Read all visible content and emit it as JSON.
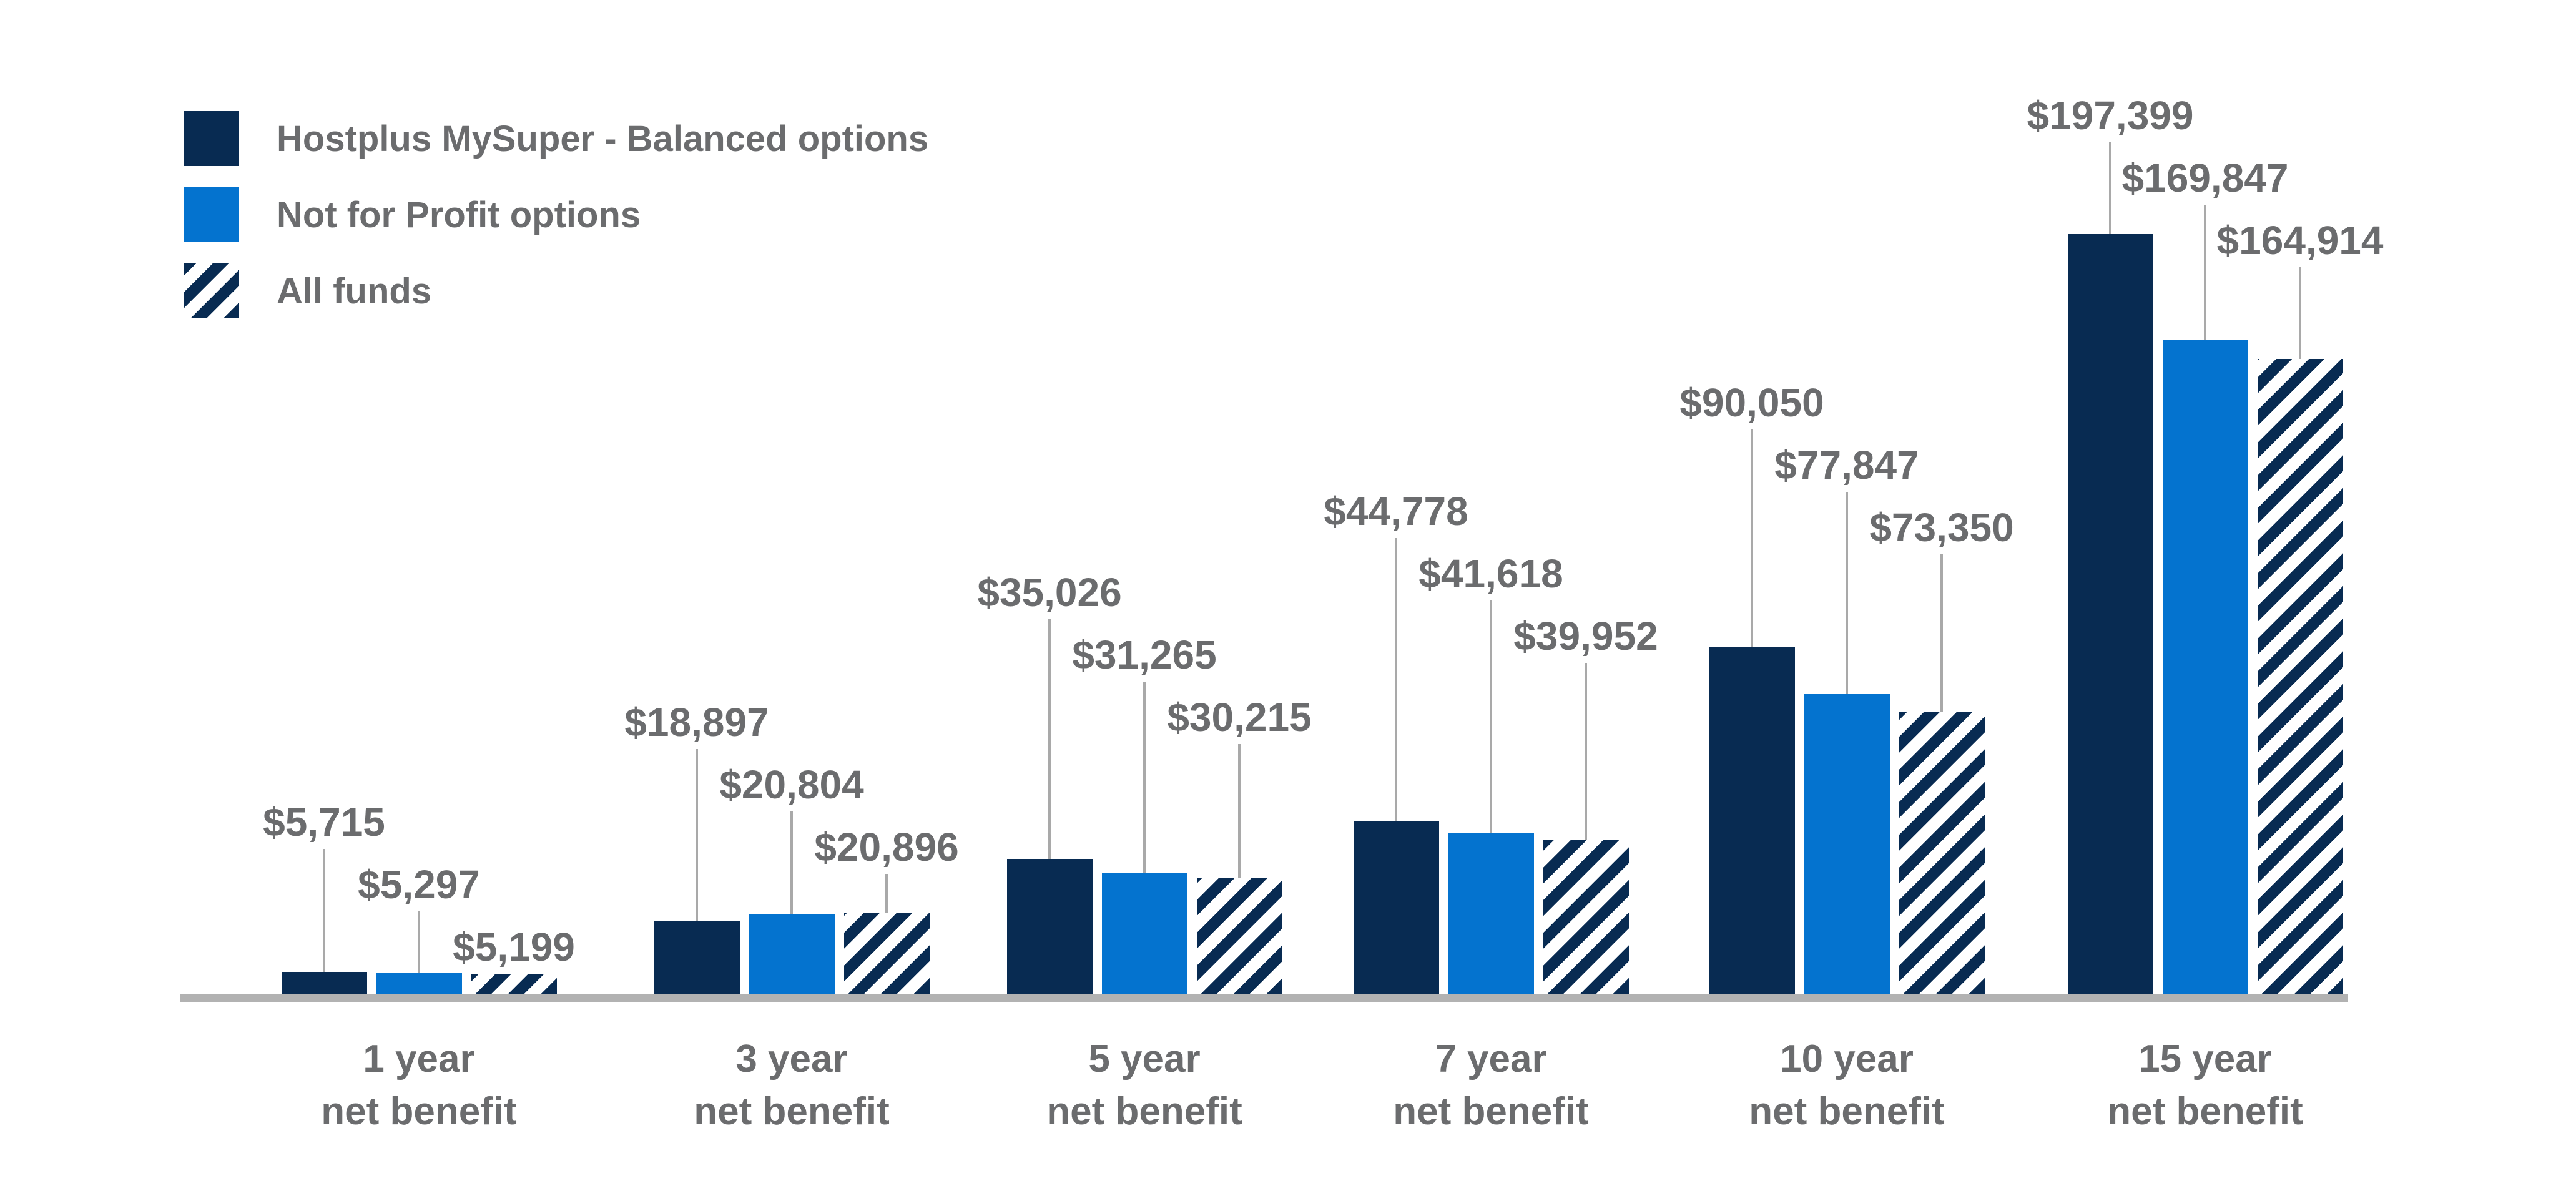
{
  "chart_data": {
    "type": "bar",
    "title": "",
    "categories": [
      {
        "line1": "1 year",
        "line2": "net benefit"
      },
      {
        "line1": "3 year",
        "line2": "net benefit"
      },
      {
        "line1": "5 year",
        "line2": "net benefit"
      },
      {
        "line1": "7 year",
        "line2": "net benefit"
      },
      {
        "line1": "10 year",
        "line2": "net benefit"
      },
      {
        "line1": "15 year",
        "line2": "net benefit"
      }
    ],
    "series": [
      {
        "name": "Hostplus MySuper - Balanced options",
        "style": "solid-navy",
        "values": [
          5715,
          18897,
          35026,
          44778,
          90050,
          197399
        ],
        "value_labels": [
          "$5,715",
          "$18,897",
          "$35,026",
          "$44,778",
          "$90,050",
          "$197,399"
        ]
      },
      {
        "name": "Not for Profit options",
        "style": "solid-blue",
        "values": [
          5297,
          20804,
          31265,
          41618,
          77847,
          169847
        ],
        "value_labels": [
          "$5,297",
          "$20,804",
          "$31,265",
          "$41,618",
          "$77,847",
          "$169,847"
        ]
      },
      {
        "name": "All funds",
        "style": "diagonal-stripes-navy-on-white",
        "values": [
          5199,
          20896,
          30215,
          39952,
          73350,
          164914
        ],
        "value_labels": [
          "$5,199",
          "$20,896",
          "$30,215",
          "$39,952",
          "$73,350",
          "$164,914"
        ]
      }
    ],
    "ylim": [
      0,
      197399
    ],
    "grid": false,
    "y_axis_shown": false,
    "x_axis_shown": true,
    "legend_position": "top-left",
    "colors": {
      "navy": "#082b52",
      "blue": "#0473cf",
      "label_text": "#6b6c6e",
      "baseline": "#b2b2b2",
      "leader_line": "#a9a9a9",
      "background": "#ffffff"
    }
  },
  "legend": {
    "items": [
      {
        "label": "Hostplus MySuper - Balanced options",
        "swatch": "navy-square"
      },
      {
        "label": "Not for Profit options",
        "swatch": "blue-square"
      },
      {
        "label": "All funds",
        "swatch": "hatched-square"
      }
    ]
  }
}
